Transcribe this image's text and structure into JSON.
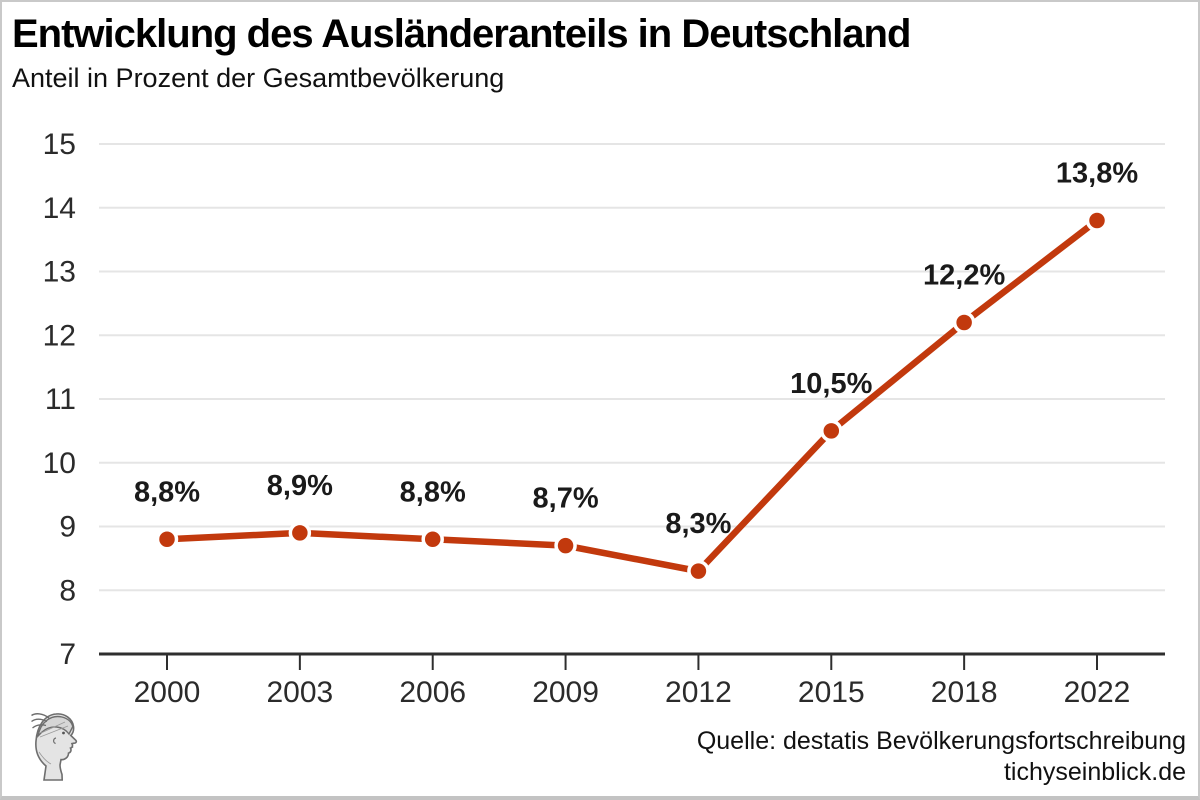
{
  "header": {
    "title": "Entwicklung des Ausländeranteils in Deutschland",
    "subtitle": "Anteil in Prozent der Gesamtbevölkerung"
  },
  "footer": {
    "source_line1": "Quelle: destatis Bevölkerungsfortschreibung",
    "source_line2": "tichyseinblick.de",
    "logo": "tichys-einblick-head-logo"
  },
  "colors": {
    "line": "#c2390d",
    "marker": "#c2390d",
    "marker_halo": "#ffffff",
    "grid": "#e5e5e5",
    "axis": "#2e2e2e",
    "tick_text": "#2b2b2b",
    "data_label": "#1a1a1a",
    "border": "#c9c9c9"
  },
  "chart_data": {
    "type": "line",
    "x": [
      "2000",
      "2003",
      "2006",
      "2009",
      "2012",
      "2015",
      "2018",
      "2022"
    ],
    "values": [
      8.8,
      8.9,
      8.8,
      8.7,
      8.3,
      10.5,
      12.2,
      13.8
    ],
    "point_labels": [
      "8,8%",
      "8,9%",
      "8,8%",
      "8,7%",
      "8,3%",
      "10,5%",
      "12,2%",
      "13,8%"
    ],
    "series_name": "Ausländeranteil",
    "title": "Entwicklung des Ausländeranteils in Deutschland",
    "subtitle": "Anteil in Prozent der Gesamtbevölkerung",
    "xlabel": "",
    "ylabel": "",
    "ylim": [
      7,
      15
    ],
    "yticks": [
      7,
      8,
      9,
      10,
      11,
      12,
      13,
      14,
      15
    ],
    "grid": true,
    "legend": "none",
    "x_spacing": "categorical-even"
  }
}
